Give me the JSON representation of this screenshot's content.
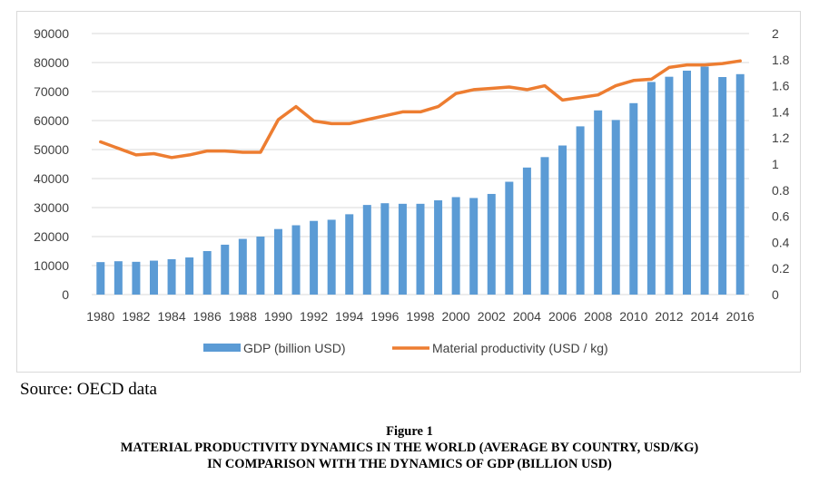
{
  "source_note": "Source: OECD data",
  "figure": {
    "label": "Figure 1",
    "title_line1": "MATERIAL PRODUCTIVITY DYNAMICS IN THE WORLD (AVERAGE BY COUNTRY, USD/KG)",
    "title_line2": "IN COMPARISON WITH THE DYNAMICS OF GDP (BILLION USD)"
  },
  "colors": {
    "bar": "#5b9bd5",
    "line": "#ed7d31",
    "grid": "#d9d9d9",
    "text": "#404040"
  },
  "chart_data": {
    "type": "bar",
    "title": "",
    "x": [
      1980,
      1981,
      1982,
      1983,
      1984,
      1985,
      1986,
      1987,
      1988,
      1989,
      1990,
      1991,
      1992,
      1993,
      1994,
      1995,
      1996,
      1997,
      1998,
      1999,
      2000,
      2001,
      2002,
      2003,
      2004,
      2005,
      2006,
      2007,
      2008,
      2009,
      2010,
      2011,
      2012,
      2013,
      2014,
      2015,
      2016
    ],
    "x_tick_labels": [
      "1980",
      "1982",
      "1984",
      "1986",
      "1988",
      "1990",
      "1992",
      "1994",
      "1996",
      "1998",
      "2000",
      "2002",
      "2004",
      "2006",
      "2008",
      "2010",
      "2012",
      "2014",
      "2016"
    ],
    "y_left": {
      "min": 0,
      "max": 90000,
      "ticks": [
        "0",
        "10000",
        "20000",
        "30000",
        "40000",
        "50000",
        "60000",
        "70000",
        "80000",
        "90000"
      ]
    },
    "y_right": {
      "min": 0,
      "max": 2,
      "ticks": [
        "0",
        "0.2",
        "0.4",
        "0.6",
        "0.8",
        "1",
        "1.2",
        "1.4",
        "1.6",
        "1.8",
        "2"
      ]
    },
    "grid": true,
    "legend_position": "bottom",
    "series": [
      {
        "name": "GDP (billion USD)",
        "type": "bar",
        "axis": "left",
        "values": [
          11200,
          11500,
          11300,
          11700,
          12200,
          12800,
          15000,
          17200,
          19200,
          20000,
          22600,
          23900,
          25400,
          25800,
          27700,
          30900,
          31500,
          31300,
          31300,
          32500,
          33600,
          33300,
          34700,
          38900,
          43800,
          47400,
          51400,
          58000,
          63500,
          60200,
          66000,
          73300,
          75100,
          77200,
          78600,
          75000,
          76000
        ]
      },
      {
        "name": "Material productivity (USD / kg)",
        "type": "line",
        "axis": "right",
        "values": [
          1.17,
          1.12,
          1.07,
          1.08,
          1.05,
          1.07,
          1.1,
          1.1,
          1.09,
          1.09,
          1.34,
          1.44,
          1.33,
          1.31,
          1.31,
          1.34,
          1.37,
          1.4,
          1.4,
          1.44,
          1.54,
          1.57,
          1.58,
          1.59,
          1.57,
          1.6,
          1.49,
          1.51,
          1.53,
          1.6,
          1.64,
          1.65,
          1.74,
          1.76,
          1.76,
          1.77,
          1.79
        ]
      }
    ]
  }
}
